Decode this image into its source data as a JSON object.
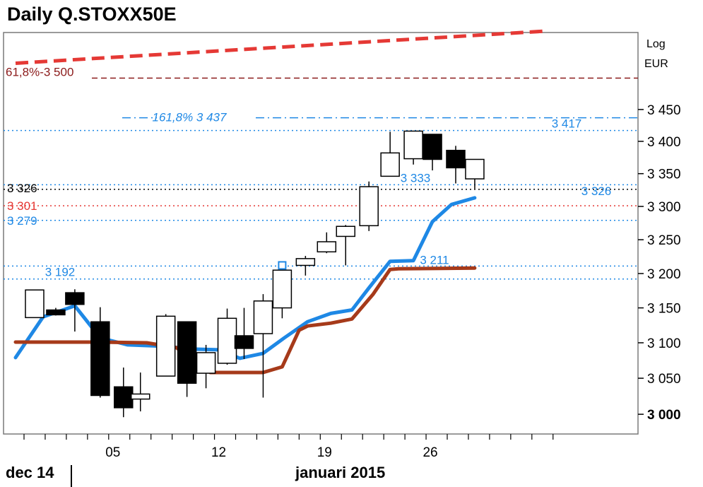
{
  "chart_data": {
    "type": "candlestick",
    "title": "Daily Q.STOXX50E",
    "scale": "Log",
    "currency": "EUR",
    "y_scale": "log",
    "y_ticks": [
      3000,
      3050,
      3100,
      3150,
      3200,
      3250,
      3300,
      3350,
      3400,
      3450
    ],
    "y_tick_labels": [
      "3 000",
      "3 050",
      "3 100",
      "3 150",
      "3 200",
      "3 250",
      "3 300",
      "3 350",
      "3 400",
      "3 450"
    ],
    "ylim": [
      2973,
      3574
    ],
    "x_ticks": [
      {
        "index": 4,
        "label": "05"
      },
      {
        "index": 9,
        "label": "12"
      },
      {
        "index": 14,
        "label": "19"
      },
      {
        "index": 19,
        "label": "26"
      }
    ],
    "x_periods": [
      {
        "index": 0,
        "label": "dec 14"
      },
      {
        "index": 12,
        "label": "januari 2015"
      }
    ],
    "x_count": 26,
    "dates": [
      "2014-12-30",
      "2014-12-31",
      "2015-01-02",
      "2015-01-05",
      "2015-01-06",
      "2015-01-07",
      "2015-01-08",
      "2015-01-09",
      "2015-01-12",
      "2015-01-13",
      "2015-01-14",
      "2015-01-15",
      "2015-01-16",
      "2015-01-19",
      "2015-01-20",
      "2015-01-21",
      "2015-01-22",
      "2015-01-23",
      "2015-01-26",
      "2015-01-27",
      "2015-01-28",
      "2015-01-29",
      "2015-01-30"
    ],
    "candles": [
      {
        "x": 0.3,
        "open": 3136,
        "high": 3176,
        "low": 3136,
        "close": 3176
      },
      {
        "x": 1.3,
        "open": 3147,
        "high": 3150,
        "low": 3139,
        "close": 3140
      },
      {
        "x": 2.2,
        "open": 3172,
        "high": 3177,
        "low": 3116,
        "close": 3155
      },
      {
        "x": 3.4,
        "open": 3130,
        "high": 3151,
        "low": 3023,
        "close": 3026
      },
      {
        "x": 4.5,
        "open": 3038,
        "high": 3065,
        "low": 2996,
        "close": 3009
      },
      {
        "x": 5.3,
        "open": 3021,
        "high": 3058,
        "low": 3004,
        "close": 3028
      },
      {
        "x": 6.5,
        "open": 3053,
        "high": 3141,
        "low": 3053,
        "close": 3138
      },
      {
        "x": 7.5,
        "open": 3130,
        "high": 3130,
        "low": 3024,
        "close": 3043
      },
      {
        "x": 8.4,
        "open": 3057,
        "high": 3097,
        "low": 3036,
        "close": 3086
      },
      {
        "x": 9.4,
        "open": 3071,
        "high": 3149,
        "low": 3069,
        "close": 3135
      },
      {
        "x": 10.2,
        "open": 3110,
        "high": 3150,
        "low": 3077,
        "close": 3092
      },
      {
        "x": 11.1,
        "open": 3113,
        "high": 3170,
        "low": 3023,
        "close": 3160
      },
      {
        "x": 12.0,
        "open": 3150,
        "high": 3205,
        "low": 3135,
        "close": 3205
      },
      {
        "x": 13.1,
        "open": 3212,
        "high": 3226,
        "low": 3197,
        "close": 3222
      },
      {
        "x": 14.1,
        "open": 3232,
        "high": 3261,
        "low": 3230,
        "close": 3247
      },
      {
        "x": 15.0,
        "open": 3255,
        "high": 3272,
        "low": 3212,
        "close": 3270
      },
      {
        "x": 16.1,
        "open": 3271,
        "high": 3338,
        "low": 3263,
        "close": 3330
      },
      {
        "x": 17.1,
        "open": 3346,
        "high": 3415,
        "low": 3346,
        "close": 3382
      },
      {
        "x": 18.2,
        "open": 3373,
        "high": 3416,
        "low": 3364,
        "close": 3416
      },
      {
        "x": 19.1,
        "open": 3411,
        "high": 3411,
        "low": 3355,
        "close": 3372
      },
      {
        "x": 20.2,
        "open": 3386,
        "high": 3393,
        "low": 3335,
        "close": 3359
      },
      {
        "x": 21.1,
        "open": 3342,
        "high": 3372,
        "low": 3327,
        "close": 3372
      }
    ],
    "series": [
      {
        "color": "#1e88e5",
        "x": [
          -0.6,
          0.7,
          2.2,
          3.4,
          4.7,
          6.4,
          7.8,
          9.0,
          10.0,
          11.1,
          12.1,
          13.2,
          14.3,
          15.3,
          16.1,
          17.1,
          18.2,
          19.1,
          20.0,
          21.1
        ],
        "y": [
          3079,
          3137,
          3153,
          3107,
          3097,
          3095,
          3091,
          3090,
          3078,
          3085,
          3107,
          3130,
          3142,
          3147,
          3179,
          3218,
          3219,
          3277,
          3303,
          3313
        ]
      },
      {
        "color": "#a63a1a",
        "x": [
          -0.6,
          3.4,
          5.6,
          7.0,
          8.6,
          11.1,
          12.0,
          12.8,
          13.2,
          14.3,
          15.3,
          16.3,
          17.1,
          17.5,
          21.1
        ],
        "y": [
          3101,
          3101,
          3100,
          3093,
          3058,
          3058,
          3066,
          3118,
          3124,
          3128,
          3134,
          3170,
          3206,
          3207,
          3208
        ]
      }
    ],
    "trend_line": {
      "color": "#e53935",
      "x": [
        -0.6,
        24.3
      ],
      "y": [
        3524,
        3576
      ]
    },
    "levels": [
      {
        "label": "61,8%-3 500",
        "value": 3500,
        "color": "#8b1a1a",
        "style": "dash"
      },
      {
        "label": "161,8% 3 437",
        "value": 3437,
        "color": "#1e88e5",
        "style": "dashdot"
      },
      {
        "label": "3 417",
        "value": 3417,
        "color": "#1e88e5",
        "style": "dot"
      },
      {
        "label": "3 333",
        "value": 3333,
        "color": "#1e88e5",
        "style": "dot"
      },
      {
        "label": "3 326",
        "value": 3326,
        "color": "#000000",
        "style": "dot"
      },
      {
        "label": "3 326",
        "value": 3326,
        "color": "#1e88e5",
        "style": "none"
      },
      {
        "label": "3 301",
        "value": 3301,
        "color": "#e53935",
        "style": "dot"
      },
      {
        "label": "3 279",
        "value": 3279,
        "color": "#1e88e5",
        "style": "dot"
      },
      {
        "label": "3 211",
        "value": 3211,
        "color": "#1e88e5",
        "style": "dot"
      },
      {
        "label": "3 192",
        "value": 3192,
        "color": "#1e88e5",
        "style": "dot"
      }
    ],
    "marker": {
      "x": 12.0,
      "y": 3212
    }
  }
}
